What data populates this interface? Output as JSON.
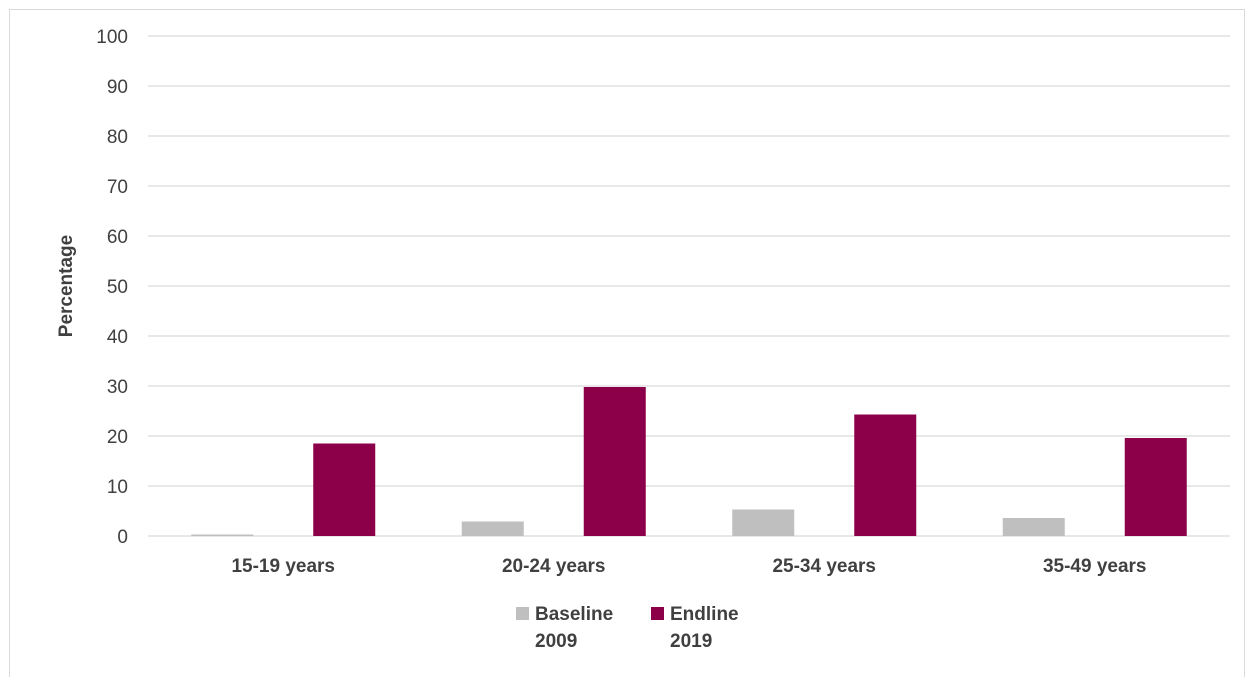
{
  "chart_data": {
    "type": "bar",
    "categories": [
      "15-19 years",
      "20-24 years",
      "25-34 years",
      "35-49 years"
    ],
    "series": [
      {
        "name": "Baseline 2009",
        "legend_lines": [
          "Baseline",
          "2009"
        ],
        "color": "#bfbfbf",
        "values": [
          0.3,
          2.9,
          5.3,
          3.6
        ]
      },
      {
        "name": "Endline 2019",
        "legend_lines": [
          "Endline",
          "2019"
        ],
        "color": "#8b0048",
        "values": [
          18.5,
          29.8,
          24.3,
          19.6
        ]
      }
    ],
    "title": "",
    "xlabel": "",
    "ylabel": "Percentage",
    "ylim": [
      0,
      100
    ],
    "yticks": [
      "0",
      "10",
      "20",
      "30",
      "40",
      "50",
      "60",
      "70",
      "80",
      "90",
      "100"
    ],
    "grid": true,
    "legend_position": "bottom"
  }
}
